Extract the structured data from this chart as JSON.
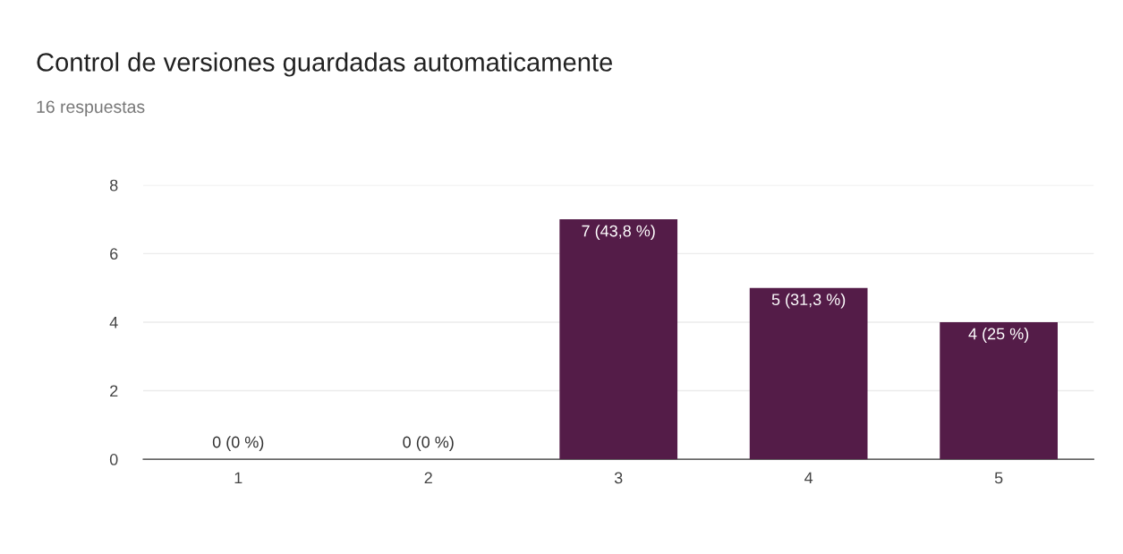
{
  "chart_data": {
    "type": "bar",
    "title": "Control de versiones guardadas automaticamente",
    "subtitle": "16 respuestas",
    "categories": [
      "1",
      "2",
      "3",
      "4",
      "5"
    ],
    "values": [
      0,
      0,
      7,
      5,
      4
    ],
    "value_labels": [
      "0 (0 %)",
      "0 (0 %)",
      "7 (43,8 %)",
      "5 (31,3 %)",
      "4 (25 %)"
    ],
    "color": "#541c48",
    "ylim": [
      0,
      8
    ],
    "yticks": [
      0,
      2,
      4,
      6,
      8
    ],
    "grid": "y",
    "legend": false
  }
}
